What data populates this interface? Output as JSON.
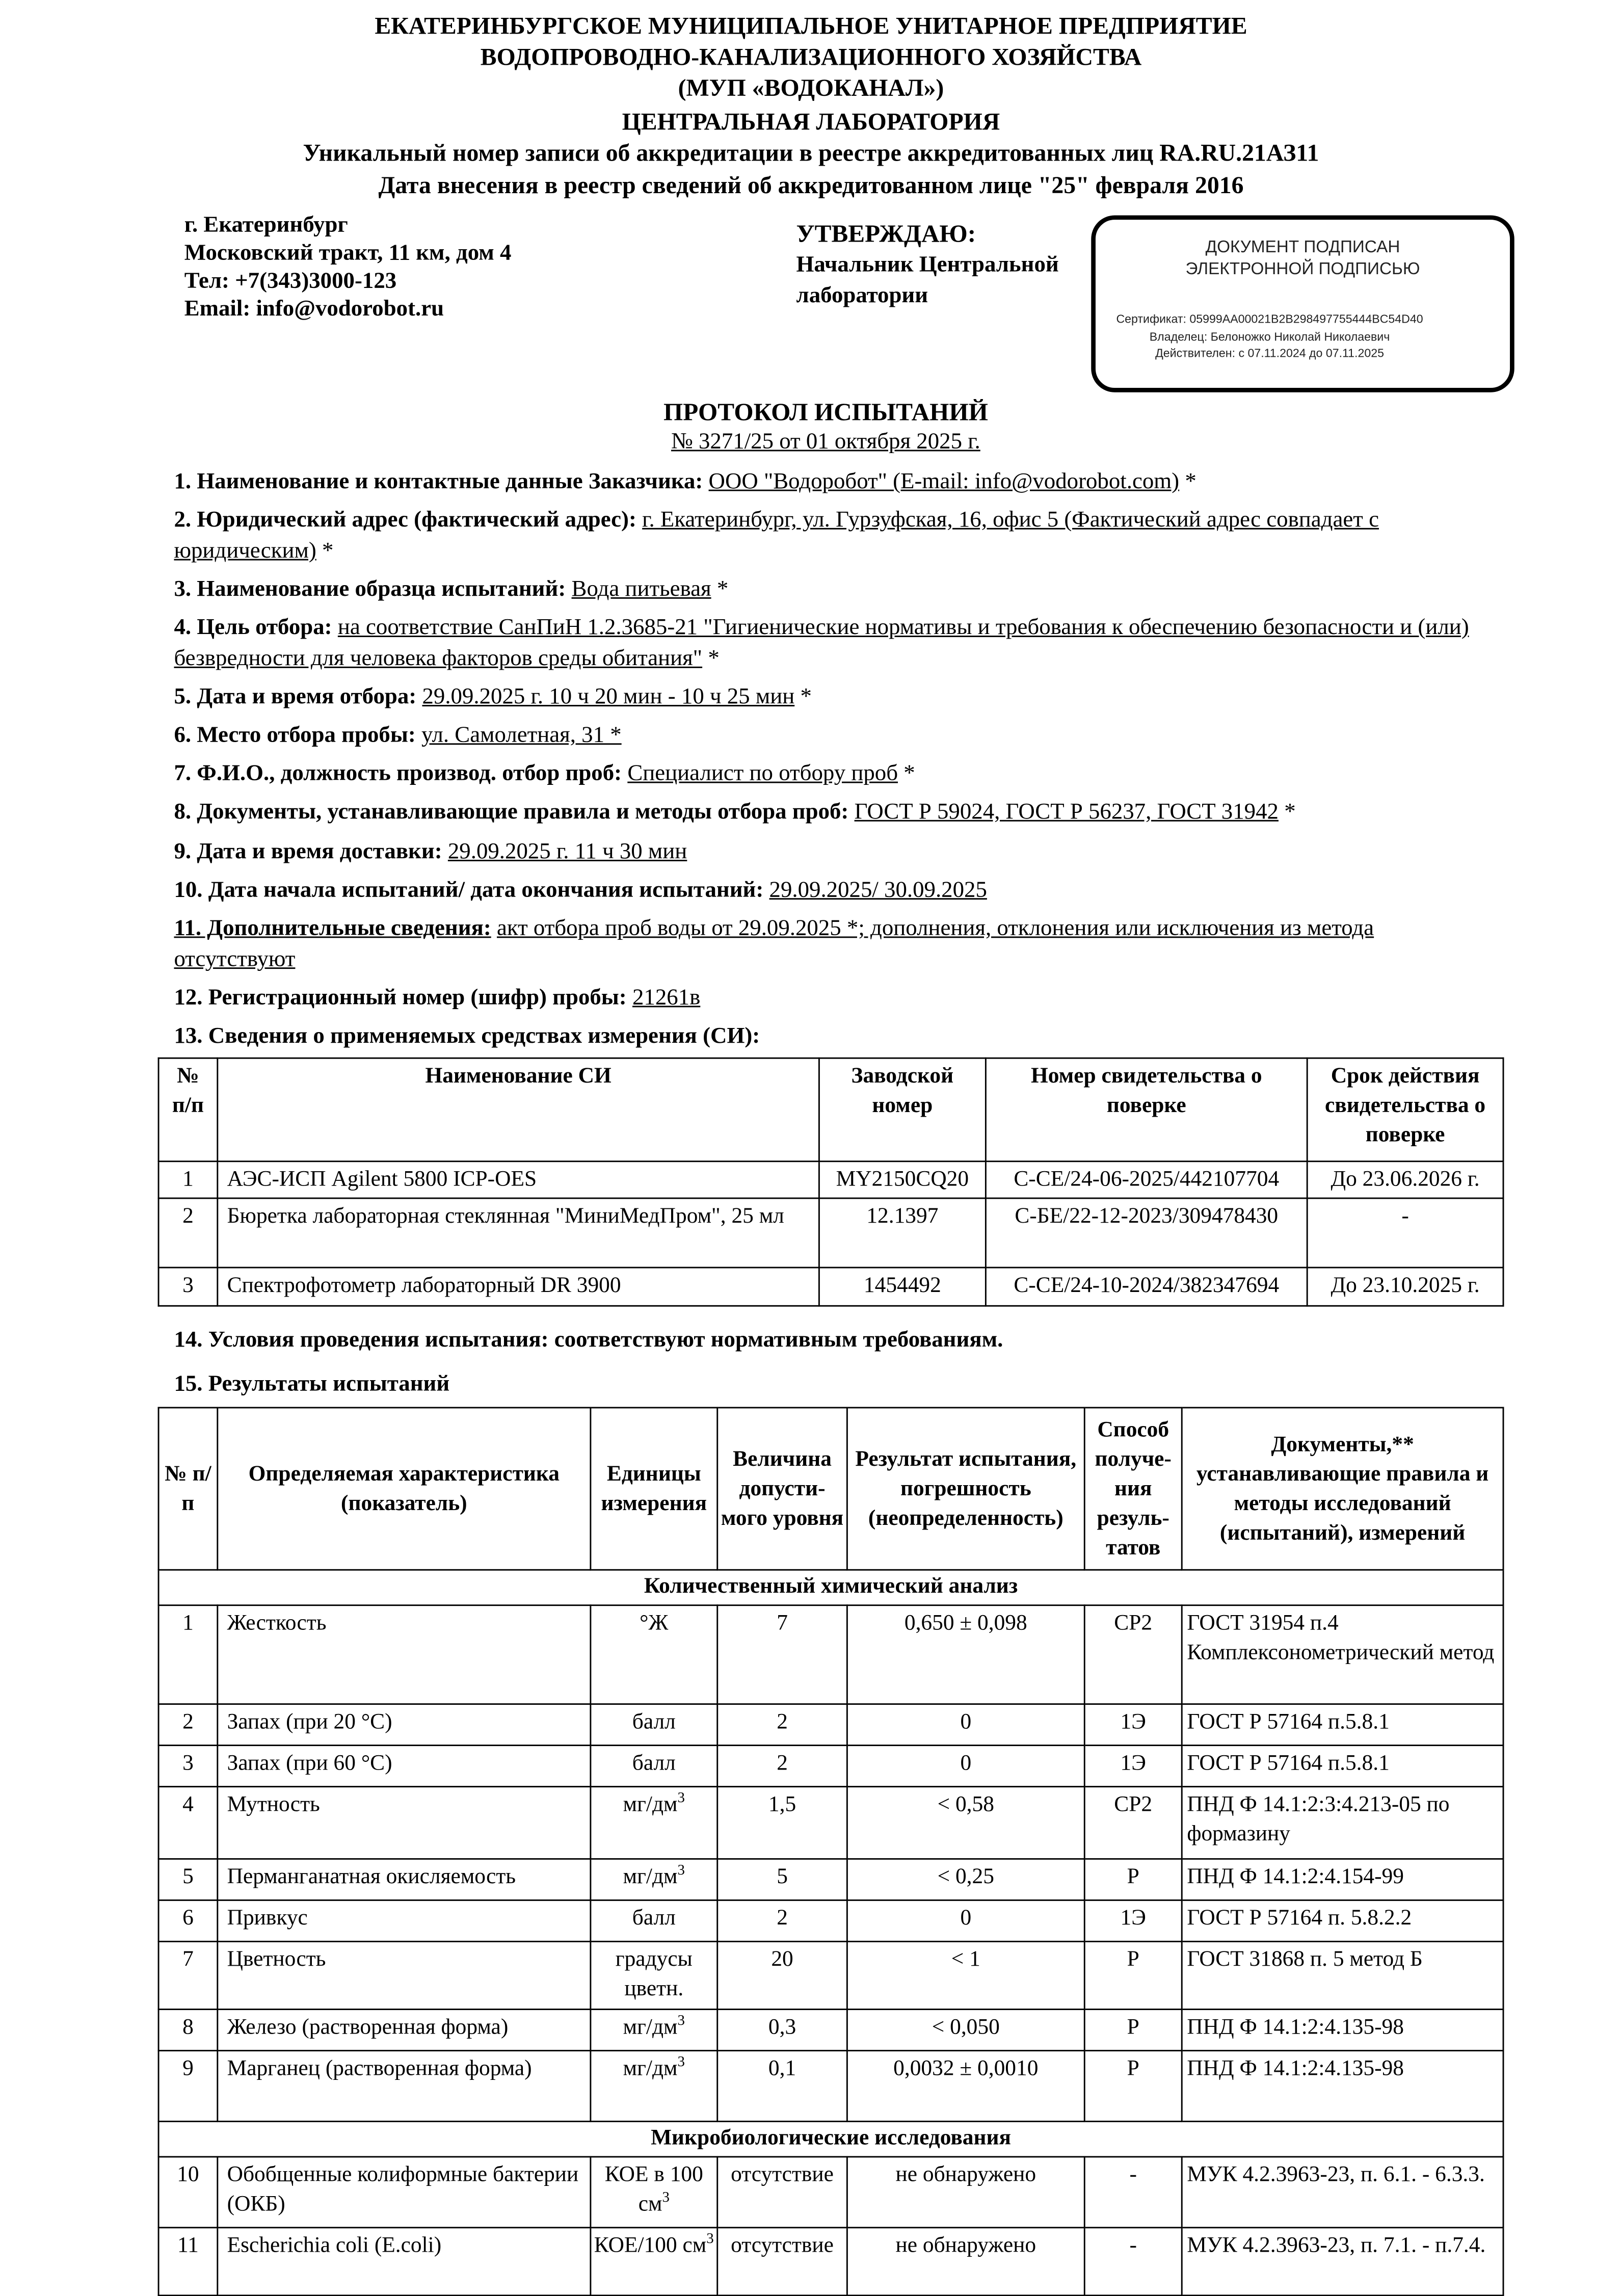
{
  "header": {
    "lines": [
      "ЕКАТЕРИНБУРГСКОЕ МУНИЦИПАЛЬНОЕ УНИТАРНОЕ ПРЕДПРИЯТИЕ",
      "ВОДОПРОВОДНО-КАНАЛИЗАЦИОННОГО ХОЗЯЙСТВА",
      "(МУП «ВОДОКАНАЛ»)",
      "ЦЕНТРАЛЬНАЯ ЛАБОРАТОРИЯ",
      "Уникальный номер записи об аккредитации в реестре аккредитованных лиц RA.RU.21АЗ11",
      "Дата внесения в реестр сведений об аккредитованном лице  \"25\" февраля 2016"
    ]
  },
  "address": [
    "г. Екатеринбург",
    "Московский тракт, 11 км, дом 4",
    "Тел: +7(343)3000-123",
    "Email: info@vodorobot.ru"
  ],
  "approve": {
    "title": "УТВЕРЖДАЮ:",
    "lines": [
      "Начальник Центральной",
      "лаборатории"
    ]
  },
  "stamp": {
    "title1": "ДОКУМЕНТ ПОДПИСАН",
    "title2": "ЭЛЕКТРОННОЙ ПОДПИСЬЮ",
    "cert": "Сертификат: 05999AA00021B2B298497755444BC54D40",
    "owner": "Владелец: Белоножко Николай Николаевич",
    "valid": "Действителен: с 07.11.2024 до 07.11.2025"
  },
  "protocol": {
    "title": "ПРОТОКОЛ ИСПЫТАНИЙ",
    "number": "№ 3271/25 от 01 октября 2025 г."
  },
  "items": [
    {
      "label": "1. Наименование и контактные данные Заказчика:",
      "value": "ООО \"Водоробот\" (E-mail: info@vodorobot.com)",
      "suffix": " *"
    },
    {
      "label": "2. Юридический адрес (фактический адрес):",
      "value": "г. Екатеринбург, ул. Гурзуфская, 16, офис 5 (Фактический адрес совпадает с юридическим)",
      "suffix": " *"
    },
    {
      "label": "3. Наименование образца испытаний:",
      "value": "Вода питьевая",
      "suffix": " *"
    },
    {
      "label": "4. Цель отбора:",
      "value": "на соответствие СанПиН 1.2.3685-21 \"Гигиенические нормативы и требования к обеспечению безопасности и (или) безвредности для человека факторов среды обитания\"",
      "suffix": " *"
    },
    {
      "label": "5. Дата и время отбора:",
      "value": "29.09.2025 г. 10 ч 20 мин - 10 ч 25 мин",
      "suffix": " *"
    },
    {
      "label": "6. Место отбора пробы:",
      "value": "ул. Самолетная, 31 *",
      "suffix": ""
    },
    {
      "label": "7. Ф.И.О., должность производ. отбор проб:",
      "value": "Специалист по отбору проб",
      "suffix": " *"
    },
    {
      "label": "8. Документы, устанавливающие правила и методы отбора проб:",
      "value": "ГОСТ Р 59024, ГОСТ Р 56237, ГОСТ 31942",
      "suffix": " *"
    },
    {
      "label": "9. Дата  и время доставки:",
      "value": "29.09.2025 г. 11 ч 30 мин",
      "suffix": ""
    },
    {
      "label": "10. Дата начала испытаний/ дата окончания испытаний:",
      "value": "29.09.2025/ 30.09.2025",
      "suffix": ""
    },
    {
      "label": "11. Дополнительные сведения:",
      "value": "акт отбора проб воды от 29.09.2025 *; дополнения, отклонения или исключения из метода отсутствуют",
      "suffix": ""
    },
    {
      "label": "12. Регистрационный номер (шифр) пробы:",
      "value": "21261в",
      "suffix": ""
    }
  ],
  "si": {
    "title": "13. Сведения о применяемых средствах измерения (СИ):",
    "headers": [
      "№ п/п",
      "Наименование СИ",
      "Заводской номер",
      "Номер свидетельства о поверке",
      "Срок действия свидетельства о поверке"
    ],
    "rows": [
      [
        "1",
        "АЭС-ИСП Agilent 5800 ICP-OES",
        "MY2150CQ20",
        "С-СЕ/24-06-2025/442107704",
        "До 23.06.2026 г."
      ],
      [
        "2",
        "Бюретка лабораторная стеклянная \"МиниМедПром\", 25 мл",
        "12.1397",
        "С-БЕ/22-12-2023/309478430",
        "-"
      ],
      [
        "3",
        "Спектрофотометр лабораторный DR 3900",
        "1454492",
        "С-СЕ/24-10-2024/382347694",
        "До 23.10.2025 г."
      ]
    ]
  },
  "conditions": "14. Условия проведения испытания: соответствуют нормативным требованиям.",
  "results": {
    "title": "15. Результаты испытаний",
    "headers": [
      "№ п/п",
      "Определяемая характеристика (показатель)",
      "Единицы измерения",
      "Величина допусти-мого уровня",
      "Результат испытания, погрешность (неопределенность)",
      "Способ получе-ния резуль-татов",
      "Документы,** устанавливающие правила и методы исследований (испытаний), измерений"
    ],
    "sections": [
      {
        "title": "Количественный химический анализ",
        "rows": [
          {
            "n": "1",
            "name": "Жесткость",
            "unit": "°Ж",
            "sup": "",
            "limit": "7",
            "result": "0,650 ± 0,098",
            "method": "СР2",
            "doc": "ГОСТ 31954 п.4 Комплексонометрический метод"
          },
          {
            "n": "2",
            "name": "Запах (при 20 °С)",
            "unit": "балл",
            "sup": "",
            "limit": "2",
            "result": "0",
            "method": "1Э",
            "doc": "ГОСТ Р 57164 п.5.8.1"
          },
          {
            "n": "3",
            "name": "Запах (при 60 °С)",
            "unit": "балл",
            "sup": "",
            "limit": "2",
            "result": "0",
            "method": "1Э",
            "doc": "ГОСТ Р 57164 п.5.8.1"
          },
          {
            "n": "4",
            "name": "Мутность",
            "unit": "мг/дм",
            "sup": "3",
            "limit": "1,5",
            "result": "< 0,58",
            "method": "СР2",
            "doc": "ПНД Ф 14.1:2:3:4.213-05 по формазину"
          },
          {
            "n": "5",
            "name": "Перманганатная окисляемость",
            "unit": "мг/дм",
            "sup": "3",
            "limit": "5",
            "result": "< 0,25",
            "method": "Р",
            "doc": "ПНД Ф 14.1:2:4.154-99"
          },
          {
            "n": "6",
            "name": "Привкус",
            "unit": "балл",
            "sup": "",
            "limit": "2",
            "result": "0",
            "method": "1Э",
            "doc": "ГОСТ Р 57164 п. 5.8.2.2"
          },
          {
            "n": "7",
            "name": "Цветность",
            "unit": "градусы цветн.",
            "sup": "",
            "limit": "20",
            "result": "< 1",
            "method": "Р",
            "doc": "ГОСТ 31868 п. 5 метод Б"
          },
          {
            "n": "8",
            "name": "Железо (растворенная форма)",
            "unit": "мг/дм",
            "sup": "3",
            "limit": "0,3",
            "result": "< 0,050",
            "method": "Р",
            "doc": "ПНД Ф 14.1:2:4.135-98"
          },
          {
            "n": "9",
            "name": "Марганец (растворенная форма)",
            "unit": "мг/дм",
            "sup": "3",
            "limit": "0,1",
            "result": "0,0032 ± 0,0010",
            "method": "Р",
            "doc": "ПНД Ф 14.1:2:4.135-98"
          }
        ]
      },
      {
        "title": "Микробиологические исследования",
        "rows": [
          {
            "n": "10",
            "name": "Обобщенные колиформные бактерии (ОКБ)",
            "unit": "КОЕ в 100 см",
            "sup": "3",
            "limit": "отсутствие",
            "result": "не обнаружено",
            "method": "-",
            "doc": "МУК 4.2.3963-23, п. 6.1. - 6.3.3."
          },
          {
            "n": "11",
            "name": "Escherichia coli (E.coli)",
            "unit": "КОЕ/100 см",
            "sup": "3",
            "limit": "отсутствие",
            "result": "не обнаружено",
            "method": "-",
            "doc": "МУК 4.2.3963-23, п. 7.1. - п.7.4."
          }
        ]
      }
    ]
  }
}
